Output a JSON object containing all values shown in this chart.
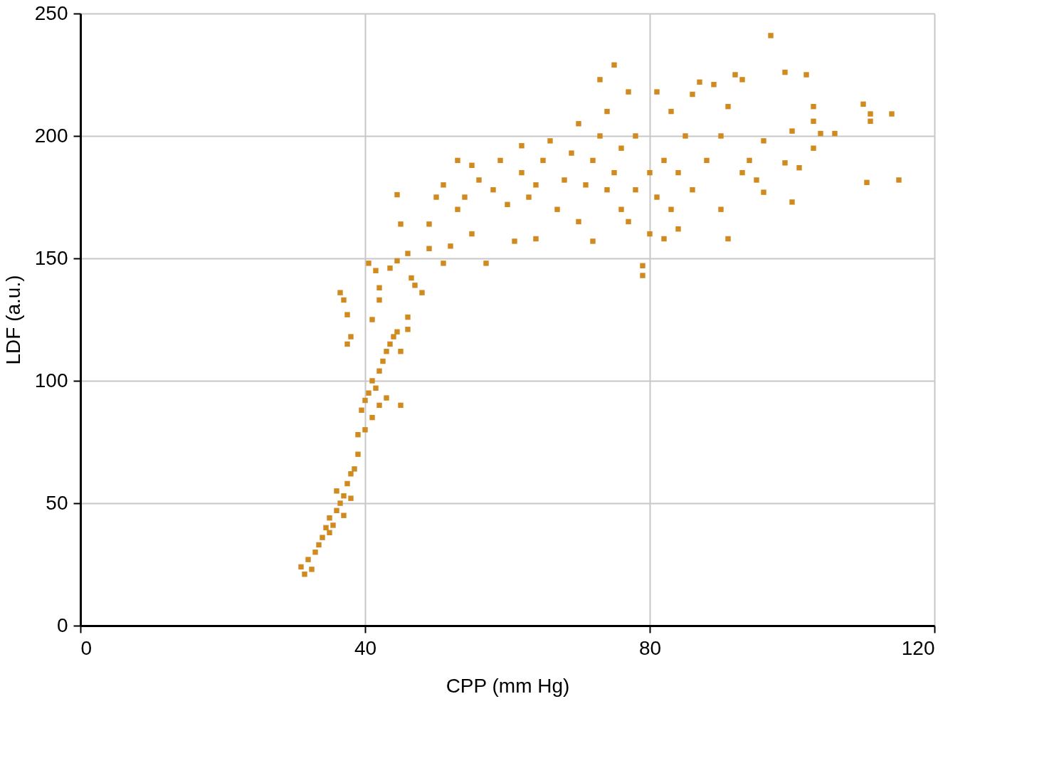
{
  "chart_data": {
    "type": "scatter",
    "xlabel": "CPP (mm Hg)",
    "ylabel": "LDF (a.u.)",
    "xlim": [
      0,
      120
    ],
    "ylim": [
      0,
      250
    ],
    "xticks": [
      0,
      40,
      80,
      120
    ],
    "yticks": [
      0,
      50,
      100,
      150,
      200,
      250
    ],
    "grid": true,
    "legend": false,
    "marker": "square",
    "series": [
      {
        "color": "#d08a1e",
        "x": [
          31,
          31.5,
          32,
          32.5,
          33,
          33.5,
          34,
          34.5,
          35,
          35,
          35.5,
          36,
          36,
          36.5,
          37,
          37,
          37.5,
          38,
          38,
          38.5,
          39,
          39,
          39.5,
          40,
          40,
          40.5,
          41,
          41,
          41.5,
          42,
          42,
          42.5,
          43,
          43,
          43.5,
          44,
          44.5,
          45,
          45,
          46,
          46,
          36.5,
          37,
          37.5,
          37.5,
          38,
          40.5,
          41,
          41.5,
          42,
          42,
          43.5,
          44.5,
          44.5,
          45,
          46,
          46.5,
          47,
          48,
          49,
          49,
          50,
          51,
          51,
          52,
          53,
          53,
          54,
          55,
          55,
          56,
          57,
          58,
          59,
          60,
          61,
          62,
          62,
          63,
          64,
          64,
          65,
          66,
          67,
          68,
          69,
          70,
          70,
          71,
          72,
          72,
          73,
          73,
          74,
          74,
          75,
          75,
          76,
          76,
          77,
          77,
          78,
          78,
          79,
          79,
          80,
          80,
          81,
          81,
          82,
          82,
          83,
          83,
          84,
          84,
          85,
          86,
          86,
          87,
          88,
          89,
          90,
          90,
          91,
          91,
          92,
          93,
          93,
          94,
          95,
          96,
          96,
          97,
          99,
          99,
          100,
          100,
          101,
          102,
          103,
          103,
          103,
          104,
          106,
          110,
          110.5,
          111,
          111,
          114,
          115
        ],
        "values": [
          24,
          21,
          27,
          23,
          30,
          33,
          36,
          40,
          38,
          44,
          41,
          47,
          55,
          50,
          45,
          53,
          58,
          62,
          52,
          64,
          70,
          78,
          88,
          92,
          80,
          95,
          100,
          85,
          97,
          90,
          104,
          108,
          93,
          112,
          115,
          118,
          120,
          90,
          112,
          126,
          121,
          136,
          133,
          127,
          115,
          118,
          148,
          125,
          145,
          138,
          133,
          146,
          149,
          176,
          164,
          152,
          142,
          139,
          136,
          154,
          164,
          175,
          180,
          148,
          155,
          190,
          170,
          175,
          188,
          160,
          182,
          148,
          178,
          190,
          172,
          157,
          185,
          196,
          175,
          158,
          180,
          190,
          198,
          170,
          182,
          193,
          165,
          205,
          180,
          157,
          190,
          223,
          200,
          178,
          210,
          229,
          185,
          195,
          170,
          218,
          165,
          200,
          178,
          143,
          147,
          185,
          160,
          218,
          175,
          158,
          190,
          210,
          170,
          162,
          185,
          200,
          178,
          217,
          222,
          190,
          221,
          170,
          200,
          158,
          212,
          225,
          223,
          185,
          190,
          182,
          198,
          177,
          241,
          226,
          189,
          173,
          202,
          187,
          225,
          212,
          206,
          195,
          201,
          201,
          213,
          181,
          209,
          206,
          209,
          182
        ]
      }
    ]
  }
}
